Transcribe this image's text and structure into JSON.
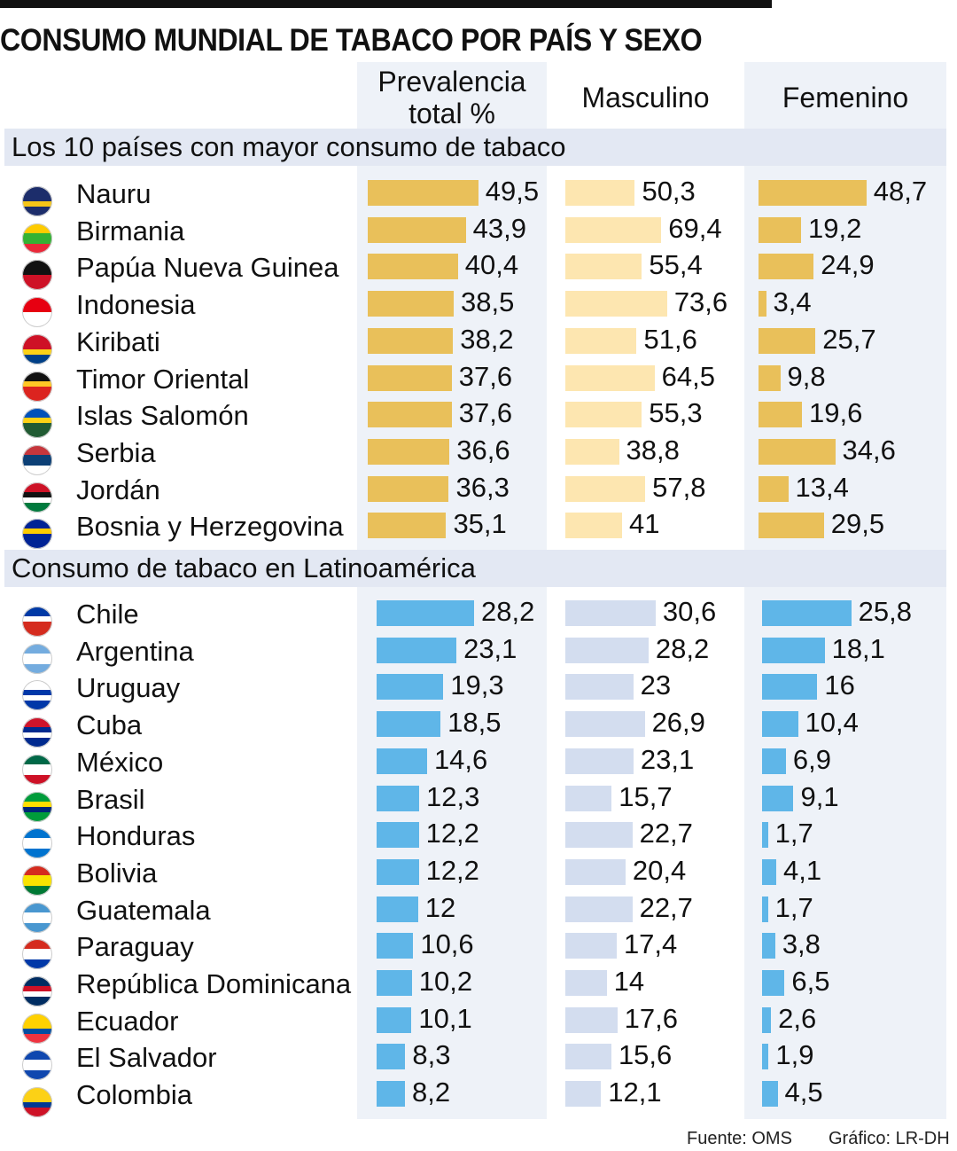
{
  "chart_data": {
    "type": "bar",
    "title": "CONSUMO MUNDIAL DE TABACO POR PAÍS Y SEXO",
    "columns": [
      "Prevalencia total %",
      "Masculino",
      "Femenino"
    ],
    "sections": [
      {
        "title": "Los 10 países con mayor consumo de tabaco",
        "colors": [
          "#e9c05a",
          "#fde6b0",
          "#e9c05a"
        ],
        "rows": [
          {
            "country": "Nauru",
            "total": "49,5",
            "male": "50,3",
            "female": "48,7",
            "flag": [
              "#1c2d6b",
              "#1c2d6b",
              "#f5c518",
              "#1c2d6b"
            ]
          },
          {
            "country": "Birmania",
            "total": "43,9",
            "male": "69,4",
            "female": "19,2",
            "flag": [
              "#fecb00",
              "#34b233",
              "#34b233",
              "#ea2839"
            ]
          },
          {
            "country": "Papúa Nueva Guinea",
            "total": "40,4",
            "male": "55,4",
            "female": "24,9",
            "flag": [
              "#111111",
              "#111111",
              "#ce1126",
              "#ce1126"
            ]
          },
          {
            "country": "Indonesia",
            "total": "38,5",
            "male": "73,6",
            "female": "3,4",
            "flag": [
              "#e70011",
              "#e70011",
              "#ffffff",
              "#ffffff"
            ]
          },
          {
            "country": "Kiribati",
            "total": "38,2",
            "male": "51,6",
            "female": "25,7",
            "flag": [
              "#ce1126",
              "#ce1126",
              "#fcd116",
              "#003f87"
            ]
          },
          {
            "country": "Timor Oriental",
            "total": "37,6",
            "male": "64,5",
            "female": "9,8",
            "flag": [
              "#111111",
              "#ffc726",
              "#dc241f",
              "#dc241f"
            ]
          },
          {
            "country": "Islas Salomón",
            "total": "37,6",
            "male": "55,3",
            "female": "19,6",
            "flag": [
              "#0051ba",
              "#fcd116",
              "#215b33",
              "#215b33"
            ]
          },
          {
            "country": "Serbia",
            "total": "36,6",
            "male": "38,8",
            "female": "34,6",
            "flag": [
              "#c6363c",
              "#0c4076",
              "#0c4076",
              "#ffffff"
            ]
          },
          {
            "country": "Jordán",
            "total": "36,3",
            "male": "57,8",
            "female": "13,4",
            "flag": [
              "#ce1126",
              "#111111",
              "#ffffff",
              "#007a3d"
            ]
          },
          {
            "country": "Bosnia y Herzegovina",
            "total": "35,1",
            "male": "41",
            "female": "29,5",
            "flag": [
              "#002395",
              "#fecb00",
              "#002395",
              "#002395"
            ]
          }
        ]
      },
      {
        "title": "Consumo de tabaco en Latinoamérica",
        "colors": [
          "#5fb6e8",
          "#d3ddef",
          "#5fb6e8"
        ],
        "rows": [
          {
            "country": "Chile",
            "total": "28,2",
            "male": "30,6",
            "female": "25,8",
            "flag": [
              "#0039a6",
              "#ffffff",
              "#d52b1e",
              "#d52b1e"
            ]
          },
          {
            "country": "Argentina",
            "total": "23,1",
            "male": "28,2",
            "female": "18,1",
            "flag": [
              "#74acdf",
              "#ffffff",
              "#ffffff",
              "#74acdf"
            ]
          },
          {
            "country": "Uruguay",
            "total": "19,3",
            "male": "23",
            "female": "16",
            "flag": [
              "#ffffff",
              "#0038a8",
              "#ffffff",
              "#0038a8"
            ]
          },
          {
            "country": "Cuba",
            "total": "18,5",
            "male": "26,9",
            "female": "10,4",
            "flag": [
              "#cf142b",
              "#002a8f",
              "#ffffff",
              "#002a8f"
            ]
          },
          {
            "country": "México",
            "total": "14,6",
            "male": "23,1",
            "female": "6,9",
            "flag": [
              "#006847",
              "#ffffff",
              "#ffffff",
              "#ce1126"
            ]
          },
          {
            "country": "Brasil",
            "total": "12,3",
            "male": "15,7",
            "female": "9,1",
            "flag": [
              "#009c3b",
              "#ffdf00",
              "#002776",
              "#009c3b"
            ]
          },
          {
            "country": "Honduras",
            "total": "12,2",
            "male": "22,7",
            "female": "1,7",
            "flag": [
              "#0073cf",
              "#ffffff",
              "#ffffff",
              "#0073cf"
            ]
          },
          {
            "country": "Bolivia",
            "total": "12,2",
            "male": "20,4",
            "female": "4,1",
            "flag": [
              "#d52b1e",
              "#f9e300",
              "#f9e300",
              "#007934"
            ]
          },
          {
            "country": "Guatemala",
            "total": "12",
            "male": "22,7",
            "female": "1,7",
            "flag": [
              "#4997d0",
              "#ffffff",
              "#ffffff",
              "#4997d0"
            ]
          },
          {
            "country": "Paraguay",
            "total": "10,6",
            "male": "17,4",
            "female": "3,8",
            "flag": [
              "#d52b1e",
              "#ffffff",
              "#ffffff",
              "#0038a8"
            ]
          },
          {
            "country": "República Dominicana",
            "total": "10,2",
            "male": "14",
            "female": "6,5",
            "flag": [
              "#002d62",
              "#ce1126",
              "#ffffff",
              "#002d62"
            ]
          },
          {
            "country": "Ecuador",
            "total": "10,1",
            "male": "17,6",
            "female": "2,6",
            "flag": [
              "#ffd100",
              "#ffd100",
              "#034ea2",
              "#ef3340"
            ]
          },
          {
            "country": "El Salvador",
            "total": "8,3",
            "male": "15,6",
            "female": "1,9",
            "flag": [
              "#0f47af",
              "#ffffff",
              "#ffffff",
              "#0f47af"
            ]
          },
          {
            "country": "Colombia",
            "total": "8,2",
            "male": "12,1",
            "female": "4,5",
            "flag": [
              "#fcd116",
              "#fcd116",
              "#003893",
              "#ce1126"
            ]
          }
        ]
      }
    ]
  },
  "footer": {
    "source": "Fuente: OMS",
    "credit": "Gráfico: LR-DH"
  }
}
